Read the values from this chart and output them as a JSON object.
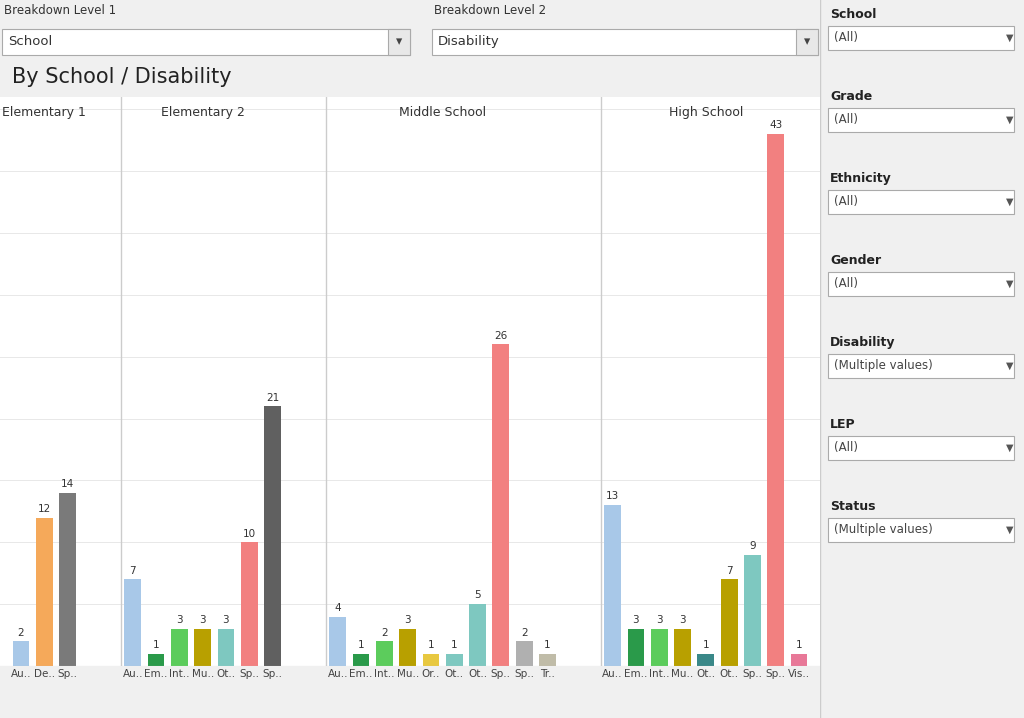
{
  "title": "By School / Disability",
  "schools": [
    "Elementary 1",
    "Elementary 2",
    "Middle School",
    "High School"
  ],
  "bars": [
    {
      "school": "Elementary 1",
      "label": "Au..",
      "value": 2,
      "color": "#a8c8e8"
    },
    {
      "school": "Elementary 1",
      "label": "De..",
      "value": 12,
      "color": "#f5a95a"
    },
    {
      "school": "Elementary 1",
      "label": "Sp..",
      "value": 14,
      "color": "#7a7a7a"
    },
    {
      "school": "Elementary 2",
      "label": "Au..",
      "value": 7,
      "color": "#a8c8e8"
    },
    {
      "school": "Elementary 2",
      "label": "Em..",
      "value": 1,
      "color": "#2a9a4a"
    },
    {
      "school": "Elementary 2",
      "label": "Int..",
      "value": 3,
      "color": "#5ccc5c"
    },
    {
      "school": "Elementary 2",
      "label": "Mu..",
      "value": 3,
      "color": "#b8a000"
    },
    {
      "school": "Elementary 2",
      "label": "Ot..",
      "value": 3,
      "color": "#7ec8c0"
    },
    {
      "school": "Elementary 2",
      "label": "Sp..",
      "value": 10,
      "color": "#f28080"
    },
    {
      "school": "Elementary 2",
      "label": "Sp..",
      "value": 21,
      "color": "#606060"
    },
    {
      "school": "Middle School",
      "label": "Au..",
      "value": 4,
      "color": "#a8c8e8"
    },
    {
      "school": "Middle School",
      "label": "Em..",
      "value": 1,
      "color": "#2a9a4a"
    },
    {
      "school": "Middle School",
      "label": "Int..",
      "value": 2,
      "color": "#5ccc5c"
    },
    {
      "school": "Middle School",
      "label": "Mu..",
      "value": 3,
      "color": "#b8a000"
    },
    {
      "school": "Middle School",
      "label": "Or..",
      "value": 1,
      "color": "#e8c840"
    },
    {
      "school": "Middle School",
      "label": "Ot..",
      "value": 1,
      "color": "#7ec8c0"
    },
    {
      "school": "Middle School",
      "label": "Ot..",
      "value": 5,
      "color": "#7ec8c0"
    },
    {
      "school": "Middle School",
      "label": "Sp..",
      "value": 26,
      "color": "#f28080"
    },
    {
      "school": "Middle School",
      "label": "Sp..",
      "value": 2,
      "color": "#b0b0b0"
    },
    {
      "school": "Middle School",
      "label": "Tr..",
      "value": 1,
      "color": "#c0bca8"
    },
    {
      "school": "High School",
      "label": "Au..",
      "value": 13,
      "color": "#a8c8e8"
    },
    {
      "school": "High School",
      "label": "Em..",
      "value": 3,
      "color": "#2a9a4a"
    },
    {
      "school": "High School",
      "label": "Int..",
      "value": 3,
      "color": "#5ccc5c"
    },
    {
      "school": "High School",
      "label": "Mu..",
      "value": 3,
      "color": "#b8a000"
    },
    {
      "school": "High School",
      "label": "Ot..",
      "value": 1,
      "color": "#3a8888"
    },
    {
      "school": "High School",
      "label": "Ot..",
      "value": 7,
      "color": "#b8a000"
    },
    {
      "school": "High School",
      "label": "Sp..",
      "value": 9,
      "color": "#7ec8c0"
    },
    {
      "school": "High School",
      "label": "Sp..",
      "value": 43,
      "color": "#f28080"
    },
    {
      "school": "High School",
      "label": "Vis..",
      "value": 1,
      "color": "#e87898"
    }
  ],
  "bg_color": "#f0f0f0",
  "plot_bg": "#ffffff",
  "header_bg": "#e2e2e2",
  "sidebar_bg": "#ffffff",
  "ylim": [
    0,
    46
  ],
  "grid_color": "#e8e8e8",
  "font_color": "#333333",
  "header_labels": {
    "breakdown1_label": "Breakdown Level 1",
    "breakdown1_value": "School",
    "breakdown2_label": "Breakdown Level 2",
    "breakdown2_value": "Disability"
  },
  "sidebar_filters": [
    {
      "label": "School",
      "value": "(All)"
    },
    {
      "label": "Grade",
      "value": "(All)"
    },
    {
      "label": "Ethnicity",
      "value": "(All)"
    },
    {
      "label": "Gender",
      "value": "(All)"
    },
    {
      "label": "Disability",
      "value": "(Multiple values)"
    },
    {
      "label": "LEP",
      "value": "(All)"
    },
    {
      "label": "Status",
      "value": "(Multiple values)"
    }
  ]
}
